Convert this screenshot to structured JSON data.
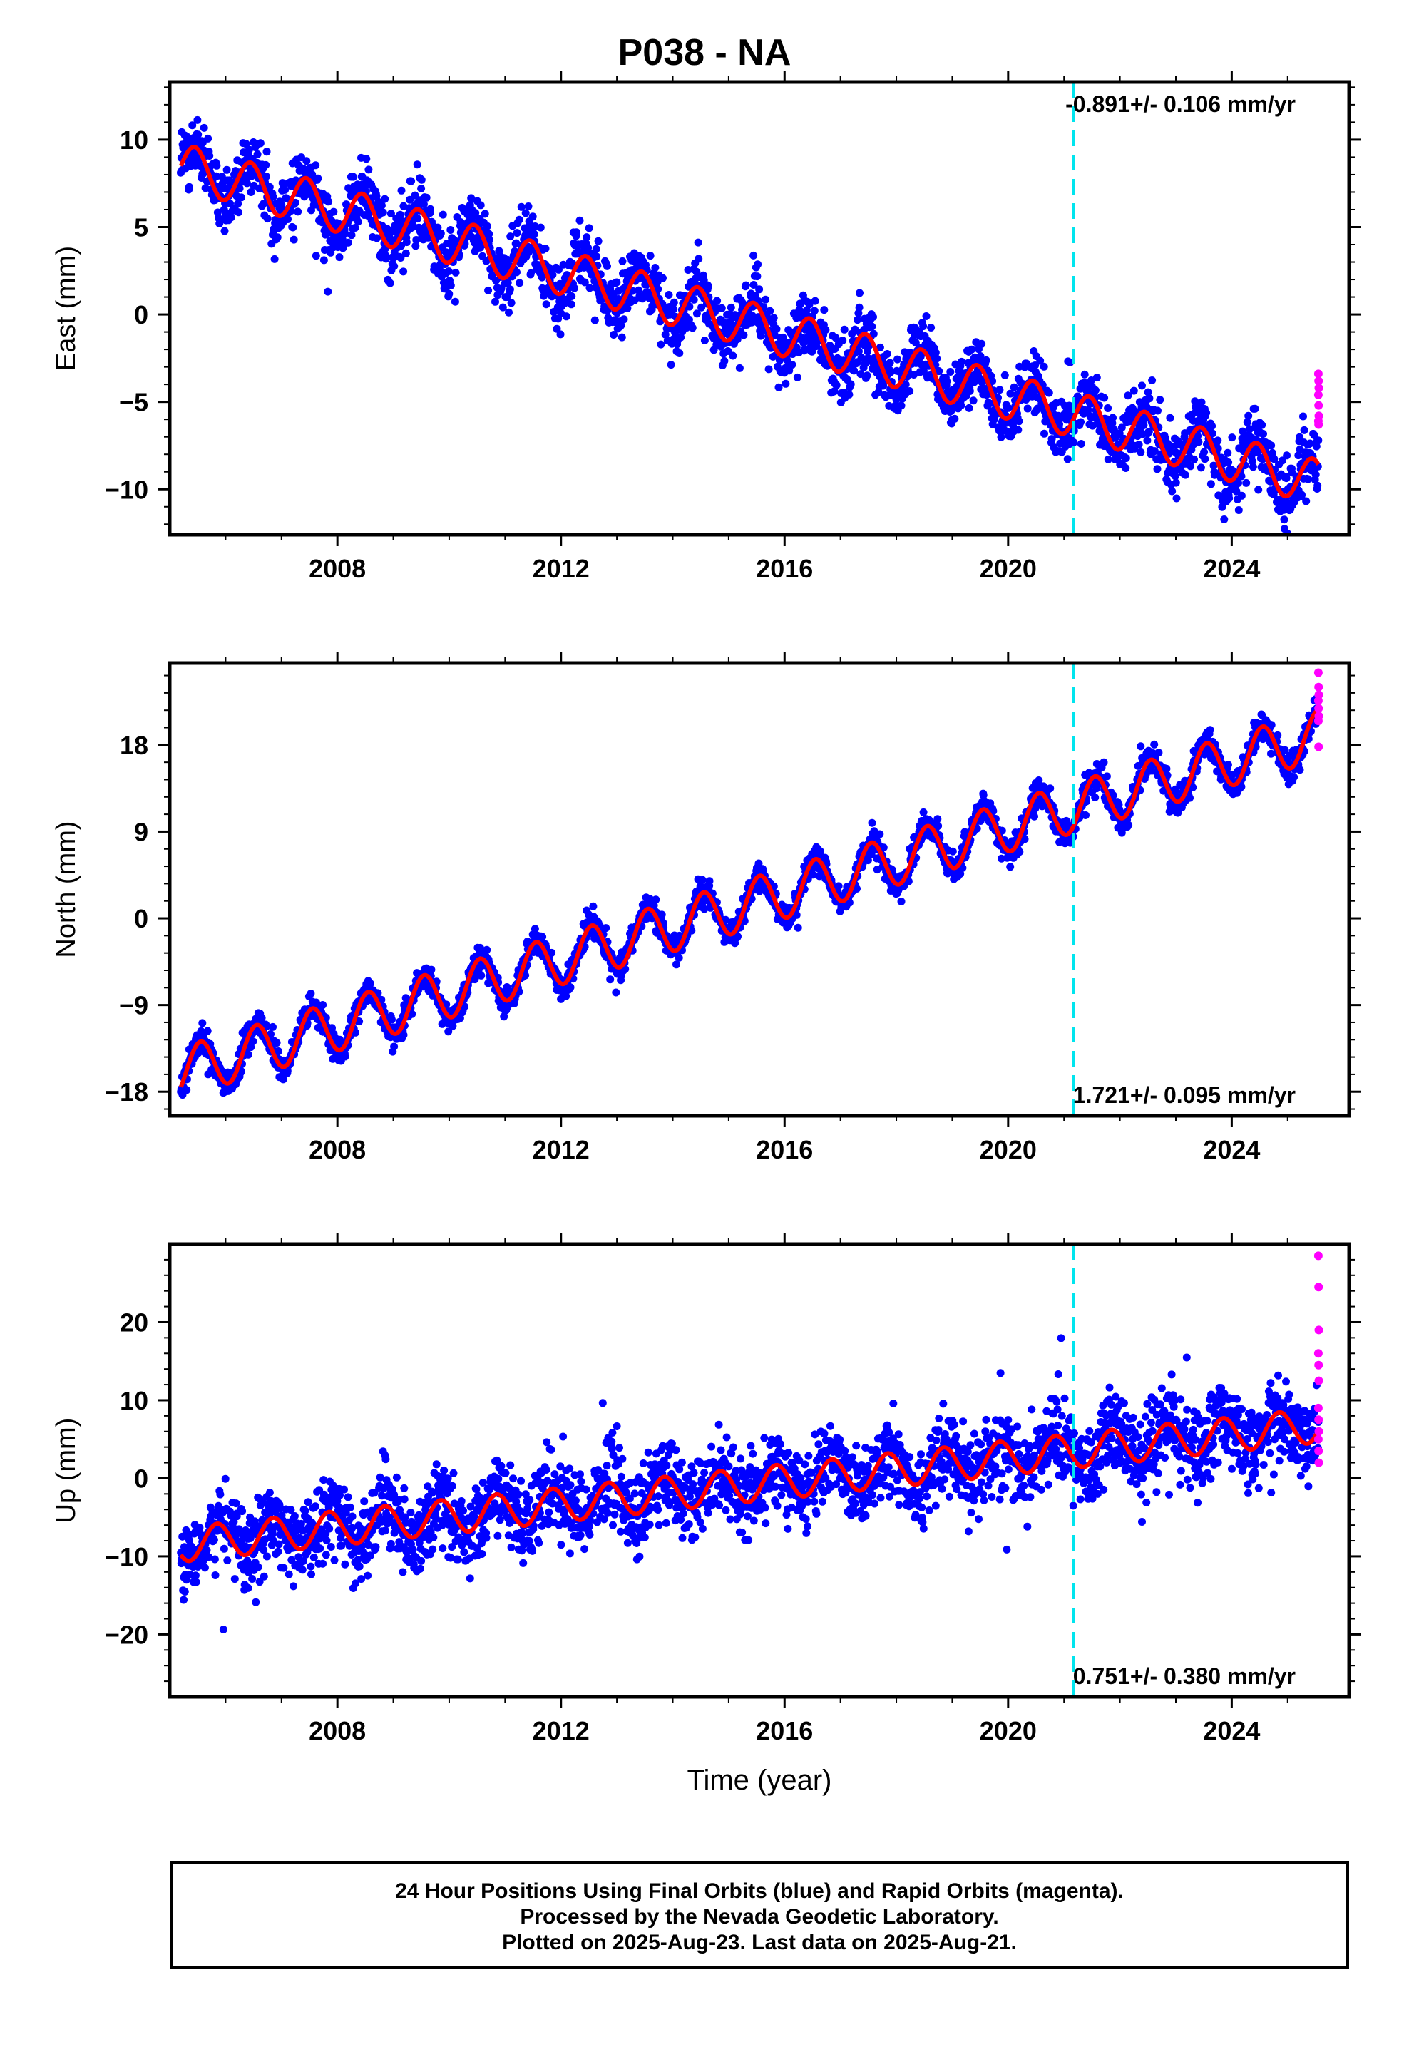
{
  "title": "P038 - NA",
  "colors": {
    "final_points": "#0000ff",
    "rapid_points": "#ff00ff",
    "model": "#ff0000",
    "marker_line": "#00e5ee",
    "frame": "#000000"
  },
  "footer": {
    "line1": "24 Hour Positions Using Final Orbits (blue) and Rapid Orbits (magenta).",
    "line2": "Processed by the Nevada Geodetic Laboratory.",
    "line3": "Plotted on 2025-Aug-23. Last data on 2025-Aug-21."
  },
  "chart_data": [
    {
      "type": "scatter",
      "component": "east",
      "ylabel": "East (mm)",
      "xlabel": "",
      "xlim": [
        2005.0,
        2026.1
      ],
      "ylim": [
        -12.6,
        13.3
      ],
      "xticks": [
        2008,
        2012,
        2016,
        2020,
        2024
      ],
      "xtick_labels": [
        "2008",
        "2012",
        "2016",
        "2020",
        "2024"
      ],
      "yticks": [
        -10,
        -5,
        0,
        5,
        10
      ],
      "ytick_labels": [
        "−10",
        "−5",
        "0",
        "5",
        "10"
      ],
      "rate_annotation": "-0.891+/- 0.106 mm/yr",
      "annotation_position": "top-right",
      "marker_line_x": 2021.17,
      "data_start": 2005.2,
      "data_end": 2025.55,
      "model": {
        "offset": 8.5,
        "trend": -0.891,
        "amplitude": 1.3,
        "phase_year": 0.45
      },
      "scatter_sd": 1.3,
      "rapid_points": [
        -3.4,
        -3.8,
        -4.2,
        -4.6,
        -5.2,
        -5.8,
        -6.1,
        -6.3
      ]
    },
    {
      "type": "scatter",
      "component": "north",
      "ylabel": "North (mm)",
      "xlabel": "",
      "xlim": [
        2005.0,
        2026.1
      ],
      "ylim": [
        -20.5,
        26.5
      ],
      "xticks": [
        2008,
        2012,
        2016,
        2020,
        2024
      ],
      "xtick_labels": [
        "2008",
        "2012",
        "2016",
        "2020",
        "2024"
      ],
      "yticks": [
        -18,
        -9,
        0,
        9,
        18
      ],
      "ytick_labels": [
        "−18",
        "−9",
        "0",
        "9",
        "18"
      ],
      "rate_annotation": "1.721+/- 0.095 mm/yr",
      "annotation_position": "bottom-right",
      "marker_line_x": 2021.17,
      "data_start": 2005.2,
      "data_end": 2025.55,
      "model": {
        "offset": -16.0,
        "trend": 1.721,
        "amplitude": 2.6,
        "phase_year": 0.55
      },
      "scatter_sd": 1.0,
      "rapid_points": [
        25.5,
        24.0,
        23.2,
        22.6,
        21.8,
        21.0,
        20.5,
        17.8
      ]
    },
    {
      "type": "scatter",
      "component": "up",
      "ylabel": "Up (mm)",
      "xlabel": "Time (year)",
      "xlim": [
        2005.0,
        2026.1
      ],
      "ylim": [
        -28.0,
        30.0
      ],
      "xticks": [
        2008,
        2012,
        2016,
        2020,
        2024
      ],
      "xtick_labels": [
        "2008",
        "2012",
        "2016",
        "2020",
        "2024"
      ],
      "yticks": [
        -20,
        -10,
        0,
        10,
        20
      ],
      "ytick_labels": [
        "−20",
        "−10",
        "0",
        "10",
        "20"
      ],
      "rate_annotation": "0.751+/- 0.380 mm/yr",
      "annotation_position": "bottom-right",
      "marker_line_x": 2021.17,
      "data_start": 2005.2,
      "data_end": 2025.55,
      "model": {
        "offset": -8.5,
        "trend": 0.751,
        "amplitude": 2.2,
        "phase_year": 0.85
      },
      "scatter_sd": 3.6,
      "rapid_points": [
        28.5,
        24.5,
        19.0,
        16.0,
        14.5,
        12.5,
        9.0,
        7.5,
        6.0,
        5.0,
        3.5,
        2.0
      ]
    }
  ]
}
